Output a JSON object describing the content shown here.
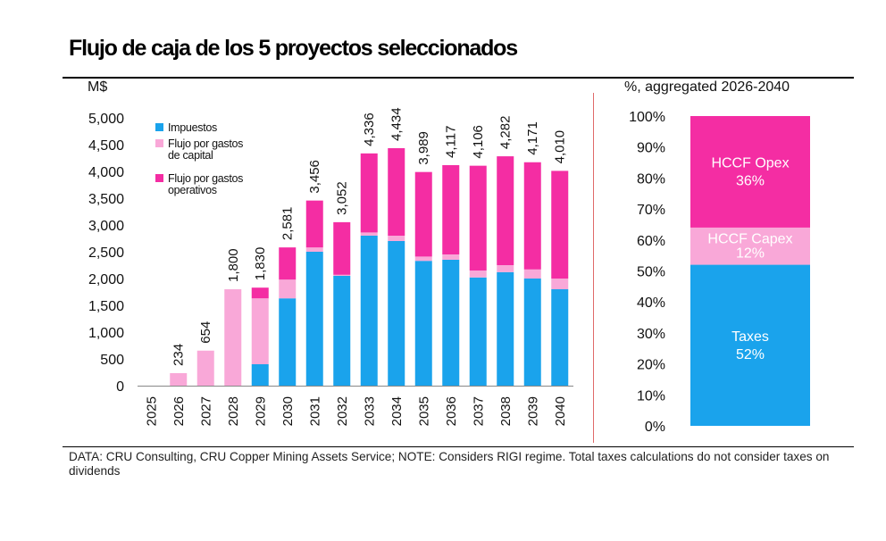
{
  "title": "Flujo de caja de los 5 proyectos seleccionados",
  "footnote": "DATA: CRU Consulting, CRU Copper Mining Assets Service; NOTE: Considers RIGI regime. Total taxes calculations do not consider taxes on dividends",
  "colors": {
    "taxes": "#1aa3ec",
    "capex": "#f9a8d8",
    "opex": "#f42da3",
    "divider": "#e06a6a"
  },
  "chart_data": [
    {
      "type": "bar",
      "stacked": true,
      "title": "",
      "ylabel": "M$",
      "ylim": [
        0,
        5000
      ],
      "yticks": [
        "0",
        "500",
        "1,000",
        "1,500",
        "2,000",
        "2,500",
        "3,000",
        "3,500",
        "4,000",
        "4,500",
        "5,000"
      ],
      "categories": [
        "2025",
        "2026",
        "2027",
        "2028",
        "2029",
        "2030",
        "2031",
        "2032",
        "2033",
        "2034",
        "2035",
        "2036",
        "2037",
        "2038",
        "2039",
        "2040"
      ],
      "series": [
        {
          "name": "Impuestos",
          "values": [
            0,
            0,
            0,
            0,
            400,
            1630,
            2500,
            2050,
            2800,
            2700,
            2330,
            2350,
            2020,
            2120,
            2000,
            1800
          ]
        },
        {
          "name": "Flujo por gastos de capital",
          "values": [
            0,
            234,
            654,
            1800,
            1230,
            350,
            80,
            20,
            60,
            100,
            80,
            100,
            130,
            130,
            170,
            200
          ]
        },
        {
          "name": "Flujo por gastos operativos",
          "values": [
            0,
            0,
            0,
            0,
            200,
            601,
            876,
            982,
            1476,
            1634,
            1579,
            1667,
            1956,
            2032,
            2001,
            2010
          ]
        }
      ],
      "totals": [
        null,
        234,
        654,
        1800,
        1830,
        2581,
        3456,
        3052,
        4336,
        4434,
        3989,
        4117,
        4106,
        4282,
        4171,
        4010
      ],
      "total_labels": [
        "",
        "234",
        "654",
        "1,800",
        "1,830",
        "2,581",
        "3,456",
        "3,052",
        "4,336",
        "4,434",
        "3,989",
        "4,117",
        "4,106",
        "4,282",
        "4,171",
        "4,010"
      ],
      "legend": {
        "placement": "top-left",
        "entries": [
          {
            "lines": [
              "Impuestos"
            ]
          },
          {
            "lines": [
              "Flujo por gastos",
              "de capital"
            ]
          },
          {
            "lines": [
              "Flujo por gastos",
              "operativos"
            ]
          }
        ]
      }
    },
    {
      "type": "bar",
      "stacked": true,
      "percent": true,
      "title": "",
      "ylabel": "%, aggregated 2026-2040",
      "ylim": [
        0,
        100
      ],
      "yticks": [
        "0%",
        "10%",
        "20%",
        "30%",
        "40%",
        "50%",
        "60%",
        "70%",
        "80%",
        "90%",
        "100%"
      ],
      "segments": [
        {
          "name": "Taxes",
          "value": 52,
          "label": "52%"
        },
        {
          "name": "HCCF Capex",
          "value": 12,
          "label": "12%"
        },
        {
          "name": "HCCF Opex",
          "value": 36,
          "label": "36%"
        }
      ]
    }
  ]
}
